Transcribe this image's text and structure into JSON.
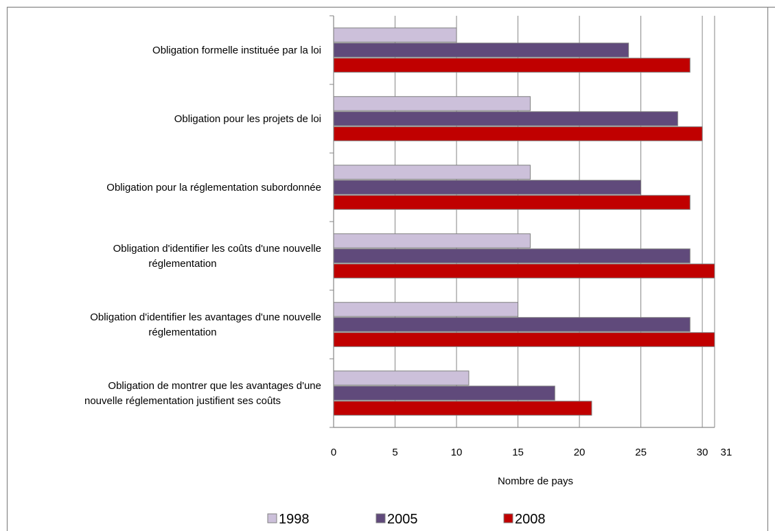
{
  "chart_data": {
    "type": "bar",
    "orientation": "horizontal",
    "categories": [
      [
        "Obligation formelle instituée par la loi"
      ],
      [
        "Obligation pour les projets de loi"
      ],
      [
        "Obligation pour la réglementation subordonnée"
      ],
      [
        "Obligation d'identifier les coûts d'une nouvelle",
        "réglementation"
      ],
      [
        "Obligation d'identifier les avantages d'une nouvelle",
        "réglementation"
      ],
      [
        "Obligation de montrer que les avantages d'une",
        "nouvelle réglementation justifient ses coûts"
      ]
    ],
    "series": [
      {
        "name": "1998",
        "color": "#ccc0da",
        "values": [
          10,
          16,
          16,
          16,
          15,
          11
        ]
      },
      {
        "name": "2005",
        "color": "#604a7b",
        "values": [
          24,
          28,
          25,
          29,
          29,
          18
        ]
      },
      {
        "name": "2008",
        "color": "#c00000",
        "values": [
          29,
          30,
          29,
          31,
          31,
          21
        ]
      }
    ],
    "xticks": [
      "0",
      "5",
      "10",
      "15",
      "20",
      "25",
      "30",
      "31"
    ],
    "xlim": [
      0,
      31
    ],
    "xlabel": "Nombre de pays",
    "grid": "vertical",
    "legend_position": "bottom"
  }
}
